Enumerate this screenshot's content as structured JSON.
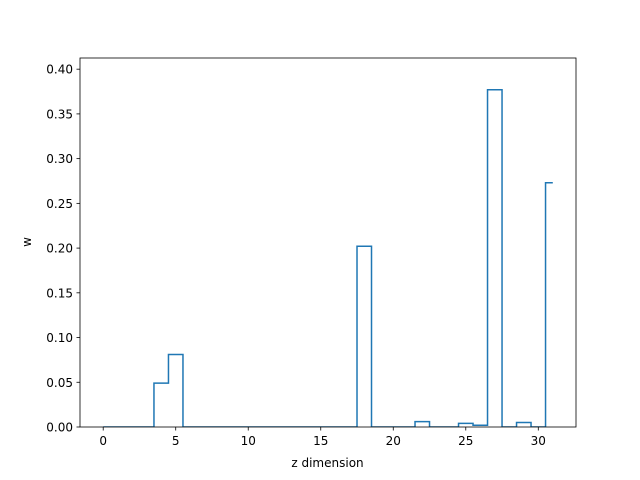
{
  "chart_data": {
    "type": "line",
    "drawstyle": "steps-mid",
    "xlabel": "z dimension",
    "ylabel": "w",
    "xlim": [
      -1.6,
      32.6
    ],
    "ylim": [
      0,
      0.4125
    ],
    "xticks": [
      0,
      5,
      10,
      15,
      20,
      25,
      30
    ],
    "xtick_labels": [
      "0",
      "5",
      "10",
      "15",
      "20",
      "25",
      "30"
    ],
    "yticks": [
      0.0,
      0.05,
      0.1,
      0.15,
      0.2,
      0.25,
      0.3,
      0.35,
      0.4
    ],
    "ytick_labels": [
      "0.00",
      "0.05",
      "0.10",
      "0.15",
      "0.20",
      "0.25",
      "0.30",
      "0.35",
      "0.40"
    ],
    "grid": false,
    "series": [
      {
        "color": "#1f77b4",
        "x": [
          0,
          1,
          2,
          3,
          4,
          5,
          6,
          7,
          8,
          9,
          10,
          11,
          12,
          13,
          14,
          15,
          16,
          17,
          18,
          19,
          20,
          21,
          22,
          23,
          24,
          25,
          26,
          27,
          28,
          29,
          30,
          31
        ],
        "values": [
          0,
          0,
          0,
          0,
          0.049,
          0.081,
          0,
          0,
          0,
          0,
          0,
          0,
          0,
          0,
          0,
          0,
          0,
          0,
          0.202,
          0,
          0,
          0,
          0.006,
          0,
          0,
          0.004,
          0.002,
          0.377,
          0,
          0.005,
          0,
          0.273
        ]
      }
    ]
  }
}
